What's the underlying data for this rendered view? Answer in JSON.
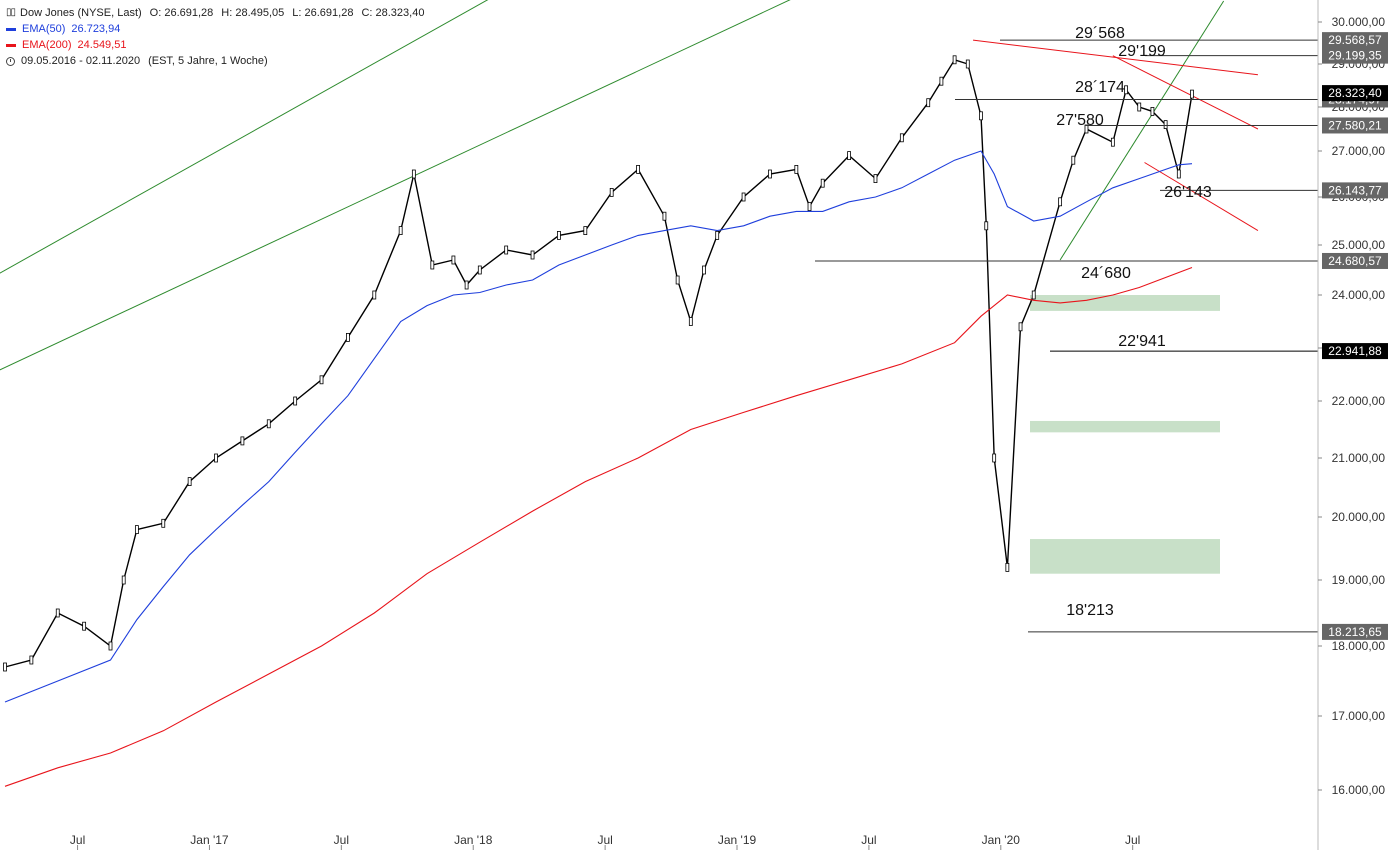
{
  "legend": {
    "title": "Dow Jones (NYSE, Last)",
    "ohlc": {
      "o": "O: 26.691,28",
      "h": "H: 28.495,05",
      "l": "L: 26.691,28",
      "c": "C: 28.323,40"
    },
    "ema50": {
      "label": "EMA(50)",
      "value": "26.723,94",
      "color": "#1f3fdc"
    },
    "ema200": {
      "label": "EMA(200)",
      "value": "24.549,51",
      "color": "#e8141b"
    },
    "range": "09.05.2016 - 02.11.2020",
    "range_note": "(EST, 5 Jahre, 1 Woche)",
    "ohlc_icon": "ohlc-bars-icon",
    "date_icon": "clock-icon"
  },
  "chart_data": {
    "type": "line",
    "title": "Dow Jones (NYSE, Last)",
    "xlabel": "",
    "ylabel": "",
    "ylim": [
      15500,
      30300
    ],
    "y_ticks": [
      {
        "v": 16000,
        "label": "16.000,00"
      },
      {
        "v": 17000,
        "label": "17.000,00"
      },
      {
        "v": 18000,
        "label": "18.000,00"
      },
      {
        "v": 19000,
        "label": "19.000,00"
      },
      {
        "v": 20000,
        "label": "20.000,00"
      },
      {
        "v": 21000,
        "label": "21.000,00"
      },
      {
        "v": 22000,
        "label": "22.000,00"
      },
      {
        "v": 23000,
        "label": "23.000,00"
      },
      {
        "v": 24000,
        "label": "24.000,00"
      },
      {
        "v": 25000,
        "label": "25.000,00"
      },
      {
        "v": 26000,
        "label": "26.000,00"
      },
      {
        "v": 27000,
        "label": "27.000,00"
      },
      {
        "v": 28000,
        "label": "28.000,00"
      },
      {
        "v": 29000,
        "label": "29.000,00"
      },
      {
        "v": 30000,
        "label": "30.000,00"
      }
    ],
    "x_ticks": [
      {
        "t": 0.15,
        "label": "Jul"
      },
      {
        "t": 0.65,
        "label": "Jan '17"
      },
      {
        "t": 1.15,
        "label": "Jul"
      },
      {
        "t": 1.65,
        "label": "Jan '18"
      },
      {
        "t": 2.15,
        "label": "Jul"
      },
      {
        "t": 2.65,
        "label": "Jan '19"
      },
      {
        "t": 3.15,
        "label": "Jul"
      },
      {
        "t": 3.65,
        "label": "Jan '20"
      },
      {
        "t": 4.15,
        "label": "Jul"
      }
    ],
    "series": [
      {
        "name": "Dow Jones (NYSE, Last)",
        "color": "#000000",
        "t": [
          0,
          0.1,
          0.2,
          0.3,
          0.4,
          0.45,
          0.5,
          0.6,
          0.7,
          0.8,
          0.9,
          1.0,
          1.1,
          1.2,
          1.3,
          1.4,
          1.5,
          1.55,
          1.62,
          1.7,
          1.75,
          1.8,
          1.9,
          2.0,
          2.1,
          2.2,
          2.3,
          2.4,
          2.5,
          2.55,
          2.6,
          2.65,
          2.7,
          2.8,
          2.9,
          3.0,
          3.05,
          3.1,
          3.2,
          3.3,
          3.4,
          3.5,
          3.55,
          3.6,
          3.65,
          3.7,
          3.72,
          3.75,
          3.8,
          3.85,
          3.9,
          4.0,
          4.05,
          4.1,
          4.2,
          4.25,
          4.3,
          4.35,
          4.4,
          4.45,
          4.5
        ],
        "values": [
          17700,
          17800,
          18500,
          18300,
          18000,
          19000,
          19800,
          19900,
          20600,
          21000,
          21300,
          21600,
          22000,
          22400,
          23200,
          24000,
          25300,
          26500,
          24600,
          24700,
          24200,
          24500,
          24900,
          24800,
          25200,
          25300,
          26100,
          26600,
          25600,
          24300,
          23500,
          24500,
          25200,
          26000,
          26500,
          26600,
          25800,
          26300,
          26900,
          26400,
          27300,
          28100,
          28600,
          29100,
          29000,
          27800,
          25400,
          21000,
          19200,
          23400,
          24000,
          25900,
          26800,
          27500,
          27200,
          28400,
          28000,
          27900,
          27600,
          26500,
          28300
        ]
      },
      {
        "name": "EMA(50)",
        "color": "#1f3fdc",
        "t": [
          0,
          0.2,
          0.4,
          0.5,
          0.6,
          0.7,
          0.8,
          0.9,
          1.0,
          1.1,
          1.2,
          1.3,
          1.4,
          1.5,
          1.6,
          1.7,
          1.8,
          1.9,
          2.0,
          2.1,
          2.2,
          2.3,
          2.4,
          2.5,
          2.6,
          2.7,
          2.8,
          2.9,
          3.0,
          3.1,
          3.2,
          3.3,
          3.4,
          3.5,
          3.6,
          3.7,
          3.75,
          3.8,
          3.9,
          4.0,
          4.1,
          4.2,
          4.3,
          4.4,
          4.45,
          4.5
        ],
        "values": [
          17200,
          17500,
          17800,
          18400,
          18900,
          19400,
          19800,
          20200,
          20600,
          21100,
          21600,
          22100,
          22800,
          23500,
          23800,
          24000,
          24050,
          24200,
          24300,
          24600,
          24800,
          25000,
          25200,
          25300,
          25400,
          25300,
          25400,
          25600,
          25700,
          25700,
          25900,
          26000,
          26200,
          26500,
          26800,
          27000,
          26500,
          25800,
          25500,
          25600,
          25900,
          26200,
          26400,
          26600,
          26700,
          26723
        ]
      },
      {
        "name": "EMA(200)",
        "color": "#e8141b",
        "t": [
          0,
          0.2,
          0.4,
          0.6,
          0.8,
          1.0,
          1.2,
          1.4,
          1.6,
          1.8,
          2.0,
          2.2,
          2.4,
          2.6,
          2.8,
          3.0,
          3.2,
          3.4,
          3.6,
          3.7,
          3.75,
          3.8,
          3.9,
          4.0,
          4.1,
          4.2,
          4.3,
          4.4,
          4.5
        ],
        "values": [
          16050,
          16300,
          16500,
          16800,
          17200,
          17600,
          18000,
          18500,
          19100,
          19600,
          20100,
          20600,
          21000,
          21500,
          21800,
          22100,
          22400,
          22700,
          23100,
          23600,
          23800,
          24000,
          23900,
          23850,
          23900,
          24000,
          24150,
          24350,
          24550
        ]
      }
    ],
    "horizontal_levels": [
      {
        "value": 29568.57,
        "label": "29.568,57",
        "annotation": "29´568",
        "color": "#333333"
      },
      {
        "value": 29199.35,
        "label": "29.199,35",
        "annotation": "29'199",
        "color": "#333333"
      },
      {
        "value": 28174.97,
        "label": "28.174,97",
        "annotation": "28´174",
        "color": "#333333"
      },
      {
        "value": 27580.21,
        "label": "27.580,21",
        "annotation": "27'580",
        "color": "#333333"
      },
      {
        "value": 26143.77,
        "label": "26.143,77",
        "annotation": "26'143",
        "color": "#333333"
      },
      {
        "value": 24680.57,
        "label": "24.680,57",
        "annotation": "24´680",
        "color": "#333333"
      },
      {
        "value": 22941.88,
        "label": "22.941,88",
        "annotation": "22'941",
        "color": "#000000"
      },
      {
        "value": 18213.65,
        "label": "18.213,65",
        "annotation": "18'213",
        "color": "#333333"
      }
    ],
    "last_price_label": "28.323,40",
    "zones": [
      {
        "y_low": 23700,
        "y_high": 24000,
        "color": "#c8e0c8"
      },
      {
        "y_low": 21450,
        "y_high": 21650,
        "color": "#c8e0c8"
      },
      {
        "y_low": 19100,
        "y_high": 19650,
        "color": "#c8e0c8"
      }
    ],
    "trendlines": [
      {
        "color": "#2e8b2e",
        "t": [
          -0.1,
          1.85
        ],
        "values": [
          24200,
          30600
        ]
      },
      {
        "color": "#2e8b2e",
        "t": [
          -0.1,
          3.0
        ],
        "values": [
          22400,
          30600
        ]
      },
      {
        "color": "#2e8b2e",
        "t": [
          4.0,
          4.62
        ],
        "values": [
          24700,
          30500
        ]
      },
      {
        "color": "#e8141b",
        "t": [
          3.67,
          4.75
        ],
        "values": [
          29568,
          28750
        ]
      },
      {
        "color": "#e8141b",
        "t": [
          4.2,
          4.75
        ],
        "values": [
          29199,
          27500
        ]
      },
      {
        "color": "#e8141b",
        "t": [
          4.32,
          4.75
        ],
        "values": [
          26750,
          25300
        ]
      }
    ],
    "grid": false,
    "legend_position": "top-left"
  }
}
